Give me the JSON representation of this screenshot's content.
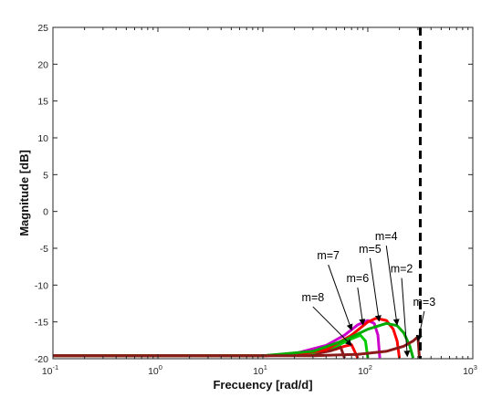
{
  "chart_data": {
    "type": "line",
    "title": "",
    "xlabel": "Frecuency [rad/d]",
    "ylabel": "Magnitude [dB]",
    "xscale": "log",
    "xlim": [
      0.1,
      1000
    ],
    "ylim": [
      -20,
      25
    ],
    "grid": false,
    "legend": "none",
    "x_ticks": [
      {
        "value": 0.1,
        "base": "10",
        "exp": "-1"
      },
      {
        "value": 1,
        "base": "10",
        "exp": "0"
      },
      {
        "value": 10,
        "base": "10",
        "exp": "1"
      },
      {
        "value": 100,
        "base": "10",
        "exp": "2"
      },
      {
        "value": 1000,
        "base": "10",
        "exp": "3"
      }
    ],
    "y_ticks": [
      "25",
      "20",
      "15",
      "10",
      "5",
      "0",
      "-5",
      "-10",
      "-15",
      "-20"
    ],
    "cutoff_line": {
      "x": 316,
      "style": "dashed",
      "color": "#000000"
    },
    "series": [
      {
        "label": "m=8",
        "color": "#ff0000",
        "cutoff": 80,
        "x": [
          0.1,
          10,
          30,
          50,
          60,
          70,
          80
        ],
        "y": [
          -19.6,
          -19.6,
          -19.3,
          -18.7,
          -18.3,
          -18.1,
          -19.9
        ]
      },
      {
        "label": "m=7",
        "color": "#8b1a1a",
        "cutoff": 60,
        "x": [
          0.1,
          10,
          30,
          45,
          55,
          60
        ],
        "y": [
          -19.6,
          -19.6,
          -19.4,
          -18.9,
          -18.4,
          -19.9
        ]
      },
      {
        "label": "m=6",
        "color": "#00cc00",
        "cutoff": 100,
        "x": [
          0.1,
          10,
          30,
          50,
          70,
          85,
          95,
          100
        ],
        "y": [
          -19.6,
          -19.6,
          -19.2,
          -18.3,
          -17.3,
          -16.8,
          -17.6,
          -19.9
        ]
      },
      {
        "label": "m=5",
        "color": "#cc00cc",
        "cutoff": 130,
        "x": [
          0.1,
          10,
          20,
          40,
          60,
          80,
          100,
          115,
          125,
          130
        ],
        "y": [
          -19.6,
          -19.6,
          -19.3,
          -18.2,
          -16.8,
          -15.4,
          -14.8,
          -15.2,
          -16.8,
          -19.9
        ]
      },
      {
        "label": "m=4",
        "color": "#ff0000",
        "cutoff": 200,
        "x": [
          0.1,
          10,
          20,
          40,
          70,
          100,
          120,
          150,
          175,
          190,
          200
        ],
        "y": [
          -19.6,
          -19.6,
          -19.5,
          -18.8,
          -16.8,
          -15.0,
          -14.5,
          -14.8,
          -16.0,
          -17.6,
          -19.9
        ]
      },
      {
        "label": "m=2",
        "color": "#00aa00",
        "cutoff": 270,
        "x": [
          0.1,
          10,
          30,
          60,
          100,
          150,
          190,
          220,
          250,
          270
        ],
        "y": [
          -19.6,
          -19.6,
          -19.0,
          -17.5,
          -16.0,
          -15.2,
          -15.5,
          -16.5,
          -18.2,
          -19.9
        ]
      },
      {
        "label": "m=3",
        "color": "#8b1a1a",
        "cutoff": 310,
        "x": [
          0.1,
          10,
          30,
          80,
          150,
          220,
          270,
          300,
          310
        ],
        "y": [
          -19.6,
          -19.6,
          -19.6,
          -19.4,
          -19.0,
          -18.3,
          -17.6,
          -17.0,
          -19.9
        ]
      }
    ],
    "annotations": [
      {
        "text": "m=8",
        "x": 30,
        "y": -12.2,
        "arrow_to": [
          70,
          -18.2
        ]
      },
      {
        "text": "m=7",
        "x": 42,
        "y": -6.5,
        "arrow_to": [
          70,
          -16.1
        ]
      },
      {
        "text": "m=6",
        "x": 80,
        "y": -9.6,
        "arrow_to": [
          90,
          -15.4
        ]
      },
      {
        "text": "m=5",
        "x": 105,
        "y": -5.6,
        "arrow_to": [
          128,
          -14.9
        ]
      },
      {
        "text": "m=4",
        "x": 150,
        "y": -3.9,
        "arrow_to": [
          190,
          -15.4
        ]
      },
      {
        "text": "m=2",
        "x": 210,
        "y": -8.3,
        "arrow_to": [
          238,
          -19.7
        ]
      },
      {
        "text": "m=3",
        "x": 345,
        "y": -12.8,
        "arrow_to": [
          300,
          -17.6
        ]
      }
    ]
  }
}
